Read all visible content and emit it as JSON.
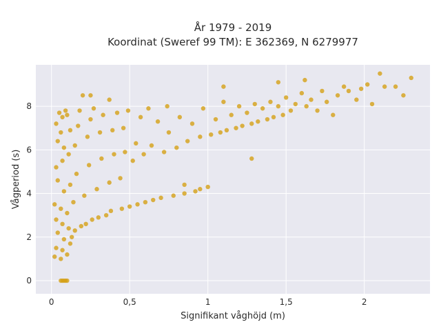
{
  "chart_data": {
    "type": "scatter",
    "title": "År 1979 - 2019",
    "subtitle": "Koordinat (Sweref 99 TM): E 362369, N 6279977",
    "xlabel": "Signifikant våghöjd (m)",
    "ylabel": "Vågperiod (s)",
    "xlim": [
      -0.1,
      2.42
    ],
    "ylim": [
      -0.6,
      9.9
    ],
    "xticks": [
      0,
      0.5,
      1,
      1.5,
      2
    ],
    "xtick_labels": [
      "0",
      "0,5",
      "1",
      "1,5",
      "2"
    ],
    "yticks": [
      0,
      2,
      4,
      6,
      8
    ],
    "ytick_labels": [
      "0",
      "2",
      "4",
      "6",
      "8"
    ],
    "grid": true,
    "marker_color": "#D4A017",
    "background_color": "#E8E8F0",
    "series": [
      {
        "points": [
          [
            0.02,
            1.1
          ],
          [
            0.03,
            1.5
          ],
          [
            0.04,
            2.2
          ],
          [
            0.03,
            2.8
          ],
          [
            0.02,
            3.5
          ],
          [
            0.04,
            4.6
          ],
          [
            0.03,
            5.2
          ],
          [
            0.04,
            6.4
          ],
          [
            0.03,
            7.2
          ],
          [
            0.05,
            7.7
          ],
          [
            0.06,
            1.0
          ],
          [
            0.07,
            1.4
          ],
          [
            0.08,
            1.9
          ],
          [
            0.07,
            2.6
          ],
          [
            0.06,
            3.3
          ],
          [
            0.08,
            4.1
          ],
          [
            0.07,
            5.5
          ],
          [
            0.08,
            6.1
          ],
          [
            0.06,
            6.8
          ],
          [
            0.07,
            7.5
          ],
          [
            0.09,
            7.8
          ],
          [
            0.1,
            1.2
          ],
          [
            0.11,
            2.4
          ],
          [
            0.1,
            3.1
          ],
          [
            0.12,
            4.4
          ],
          [
            0.11,
            5.8
          ],
          [
            0.12,
            6.9
          ],
          [
            0.1,
            7.6
          ],
          [
            0.12,
            1.7
          ],
          [
            0.13,
            2.0
          ],
          [
            0.15,
            2.3
          ],
          [
            0.14,
            3.6
          ],
          [
            0.16,
            4.9
          ],
          [
            0.15,
            6.2
          ],
          [
            0.17,
            7.1
          ],
          [
            0.18,
            7.8
          ],
          [
            0.2,
            8.5
          ],
          [
            0.19,
            2.5
          ],
          [
            0.22,
            2.6
          ],
          [
            0.21,
            3.9
          ],
          [
            0.24,
            5.3
          ],
          [
            0.23,
            6.6
          ],
          [
            0.25,
            7.4
          ],
          [
            0.27,
            7.9
          ],
          [
            0.26,
            2.8
          ],
          [
            0.3,
            2.9
          ],
          [
            0.29,
            4.2
          ],
          [
            0.32,
            5.6
          ],
          [
            0.31,
            6.8
          ],
          [
            0.33,
            7.6
          ],
          [
            0.35,
            3.0
          ],
          [
            0.38,
            3.2
          ],
          [
            0.37,
            4.5
          ],
          [
            0.4,
            5.8
          ],
          [
            0.39,
            6.9
          ],
          [
            0.42,
            7.7
          ],
          [
            0.45,
            3.3
          ],
          [
            0.44,
            4.7
          ],
          [
            0.47,
            5.9
          ],
          [
            0.46,
            7.0
          ],
          [
            0.5,
            3.4
          ],
          [
            0.49,
            7.8
          ],
          [
            0.52,
            5.5
          ],
          [
            0.55,
            3.5
          ],
          [
            0.54,
            6.3
          ],
          [
            0.57,
            7.5
          ],
          [
            0.6,
            3.6
          ],
          [
            0.59,
            5.8
          ],
          [
            0.62,
            7.9
          ],
          [
            0.65,
            3.7
          ],
          [
            0.64,
            6.2
          ],
          [
            0.68,
            7.3
          ],
          [
            0.7,
            3.8
          ],
          [
            0.72,
            5.9
          ],
          [
            0.75,
            6.8
          ],
          [
            0.74,
            8.0
          ],
          [
            0.78,
            3.9
          ],
          [
            0.8,
            6.1
          ],
          [
            0.82,
            7.5
          ],
          [
            0.85,
            4.0
          ],
          [
            0.87,
            6.4
          ],
          [
            0.9,
            7.2
          ],
          [
            0.92,
            4.1
          ],
          [
            0.95,
            6.6
          ],
          [
            0.97,
            7.9
          ],
          [
            1.0,
            4.3
          ],
          [
            1.02,
            6.7
          ],
          [
            1.05,
            7.4
          ],
          [
            1.08,
            6.8
          ],
          [
            1.1,
            8.2
          ],
          [
            1.12,
            6.9
          ],
          [
            1.15,
            7.6
          ],
          [
            1.18,
            7.0
          ],
          [
            1.2,
            8.0
          ],
          [
            1.22,
            7.1
          ],
          [
            1.25,
            7.7
          ],
          [
            1.28,
            7.2
          ],
          [
            1.3,
            8.1
          ],
          [
            1.32,
            7.3
          ],
          [
            1.35,
            7.9
          ],
          [
            1.38,
            7.4
          ],
          [
            1.4,
            8.2
          ],
          [
            1.42,
            7.5
          ],
          [
            1.45,
            8.0
          ],
          [
            1.48,
            7.6
          ],
          [
            1.5,
            8.4
          ],
          [
            1.53,
            7.8
          ],
          [
            1.56,
            8.1
          ],
          [
            1.6,
            8.6
          ],
          [
            1.63,
            8.0
          ],
          [
            1.66,
            8.3
          ],
          [
            1.7,
            7.8
          ],
          [
            1.73,
            8.7
          ],
          [
            1.76,
            8.2
          ],
          [
            1.8,
            7.6
          ],
          [
            1.83,
            8.5
          ],
          [
            1.87,
            8.9
          ],
          [
            1.9,
            8.7
          ],
          [
            1.95,
            8.3
          ],
          [
            1.98,
            8.8
          ],
          [
            2.02,
            9.0
          ],
          [
            2.05,
            8.1
          ],
          [
            2.1,
            9.5
          ],
          [
            2.13,
            8.9
          ],
          [
            2.2,
            8.9
          ],
          [
            2.25,
            8.5
          ],
          [
            2.3,
            9.3
          ],
          [
            1.45,
            9.1
          ],
          [
            1.62,
            9.2
          ],
          [
            1.1,
            8.9
          ],
          [
            0.25,
            8.5
          ],
          [
            0.37,
            8.3
          ],
          [
            1.28,
            5.6
          ],
          [
            0.85,
            4.4
          ],
          [
            0.95,
            4.2
          ],
          [
            0.06,
            0.0
          ],
          [
            0.07,
            0.0
          ],
          [
            0.08,
            0.0
          ],
          [
            0.09,
            0.0
          ],
          [
            0.1,
            0.0
          ]
        ]
      }
    ]
  }
}
